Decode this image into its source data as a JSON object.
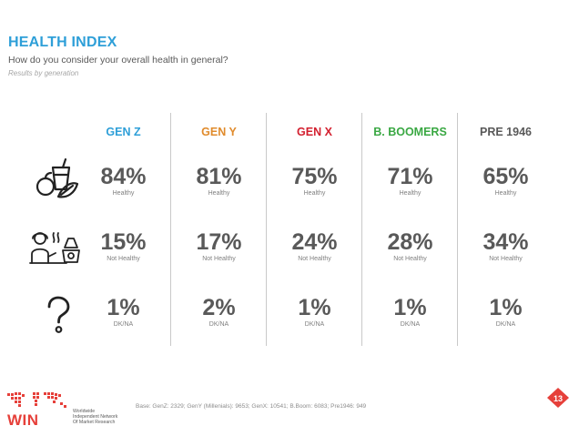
{
  "header": {
    "title": "HEALTH INDEX",
    "subtitle": "How do you consider your overall health in general?",
    "note": "Results by generation"
  },
  "columns": [
    {
      "name": "GEN Z",
      "color": "#2e9fd8",
      "healthy": "84%",
      "not_healthy": "15%",
      "dkna": "1%"
    },
    {
      "name": "GEN Y",
      "color": "#e08b2c",
      "healthy": "81%",
      "not_healthy": "17%",
      "dkna": "2%"
    },
    {
      "name": "GEN X",
      "color": "#d3202f",
      "healthy": "75%",
      "not_healthy": "24%",
      "dkna": "1%"
    },
    {
      "name": "B. BOOMERS",
      "color": "#3aa843",
      "healthy": "71%",
      "not_healthy": "28%",
      "dkna": "1%"
    },
    {
      "name": "PRE 1946",
      "color": "#595959",
      "healthy": "65%",
      "not_healthy": "34%",
      "dkna": "1%"
    }
  ],
  "labels": {
    "healthy": "Healthy",
    "not_healthy": "Not Healthy",
    "dkna": "DK/NA"
  },
  "icons": {
    "healthy": "healthy-food-icon",
    "not_healthy": "unhealthy-lifestyle-icon",
    "dkna": "question-mark-icon"
  },
  "footer": {
    "base": "Base: GenZ: 2329; GenY (Millenials): 9653; GenX: 10541; B.Boom: 6083; Pre1946: 949",
    "logo_text": "WIN",
    "logo_sub_1": "Worldwide",
    "logo_sub_2": "Independent Network",
    "logo_sub_3": "Of Market Research",
    "page_number": "13"
  }
}
